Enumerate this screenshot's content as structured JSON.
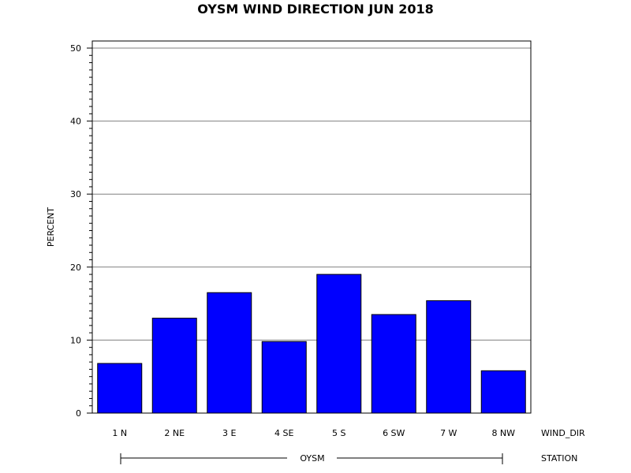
{
  "chart_data": {
    "type": "bar",
    "title": "OYSM WIND DIRECTION JUN 2018",
    "ylabel": "PERCENT",
    "xlabel": "WIND_DIR",
    "group_axis_label": "STATION",
    "group_name": "OYSM",
    "categories": [
      "1 N",
      "2 NE",
      "3 E",
      "4 SE",
      "5 S",
      "6 SW",
      "7 W",
      "8 NW"
    ],
    "values": [
      6.8,
      13.0,
      16.5,
      9.8,
      19.0,
      13.5,
      15.4,
      5.8
    ],
    "ylim": [
      0,
      50
    ],
    "yticks": [
      0,
      10,
      20,
      30,
      40,
      50
    ],
    "grid": true,
    "bar_color": "#0000ff"
  }
}
